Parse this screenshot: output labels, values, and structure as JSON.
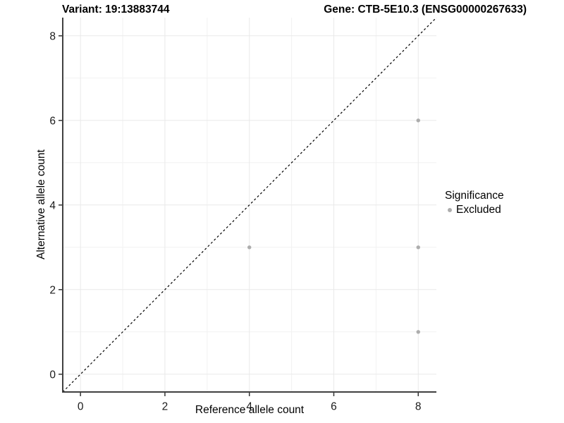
{
  "chart_data": {
    "type": "scatter",
    "title_left": "Variant: 19:13883744",
    "title_right": "Gene: CTB-5E10.3 (ENSG00000267633)",
    "xlabel": "Reference allele count",
    "ylabel": "Alternative allele count",
    "xlim": [
      -0.42,
      8.43
    ],
    "ylim": [
      -0.42,
      8.43
    ],
    "major_ticks": [
      0,
      2,
      4,
      6,
      8
    ],
    "minor_gridlines": [
      1,
      3,
      5,
      7
    ],
    "grid": true,
    "series": [
      {
        "name": "Excluded",
        "color": "#adadad",
        "points": [
          [
            4,
            3
          ],
          [
            8,
            6
          ],
          [
            8,
            3
          ],
          [
            8,
            1
          ]
        ]
      }
    ],
    "reference_line": {
      "type": "identity",
      "style": "dashed",
      "color": "#000000"
    },
    "legend": {
      "title": "Significance",
      "position": "right",
      "items": [
        {
          "label": "Excluded",
          "color": "#adadad"
        }
      ]
    },
    "colors": {
      "background": "#ffffff",
      "axis_line": "#404040",
      "tick_mark": "#333333",
      "tick_label": "#1a1a1a",
      "grid_major": "#e9e9e9",
      "grid_minor": "#f2f2f2"
    }
  }
}
